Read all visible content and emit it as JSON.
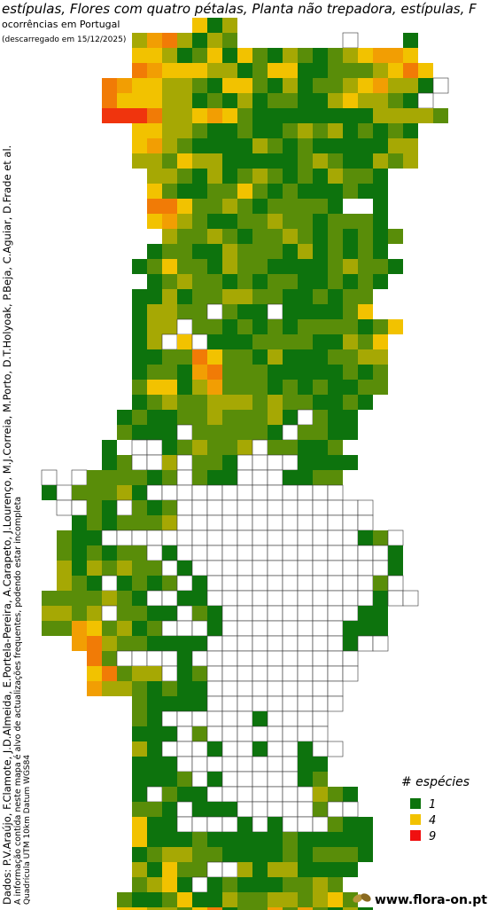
{
  "header": {
    "title": "estípulas, Flores com quatro pétalas, Planta não trepadora, estípulas, F",
    "subtitle": "ocorrências em Portugal",
    "date": "(descarregado em 15/12/2025)"
  },
  "credits": [
    "Dados: P.V.Araújo, F.Clamote, J.D.Almeida, E.Portela-Pereira, A.Carapeto, J.Lourenço, M.J.Correia, M.Porto, D.T.Holyoak, P.Beja, C.Aguiar, D.Frade et al.",
    "A informação contida neste mapa é alvo de actualizações frequentes, podendo estar incompleta",
    "Quadrícula UTM 10km Datum WGS84"
  ],
  "legend": {
    "title": "# espécies",
    "items": [
      {
        "value": 1,
        "color": "#0d730d"
      },
      {
        "value": 4,
        "color": "#f2c200"
      },
      {
        "value": 9,
        "color": "#f01010"
      }
    ]
  },
  "footer": "www.flora-on.pt",
  "map": {
    "rows": [
      "..........413",
      "......3563132.......0...1..",
      "......4431241421321234554..",
      "......65444331244112223464.",
      "....65443321442131223453310",
      "....6444331213122113433210.",
      "....88863345421111111133332",
      "......4433211211232312121..",
      "......4532111132121111133..",
      "......3324331111123211323..",
      ".......3321312321213221....",
      ".......4211224212111211....",
      ".......6642232122221..1....",
      ".......4532112232212221....",
      "........3223212232121212...",
      ".......1221132221312121....",
      "......124221322111123221...",
      ".......1232212122112121....",
      "......1131223322112122.....",
      "......1332202110111124.....",
      "......133022121212222124...",
      "......13040111222211324....",
      "......11226422131112233....",
      "......12215622211111212....",
      "......24413522212121122....",
      "......1232233323221121.....",
      ".....1211223222310211......",
      ".....2111022222102211......",
      "....1.00123223022112.......",
      "....12003022100001111......",
      "0.022221202110001122.......",
      "10222310000000000000.......",
      ".002102120000000000000.....",
      "..12122230000000000000.....",
      ".21100000000000000000120...",
      ".21212201000000000000001...",
      ".31323220100000000000001...",
      ".32101212010000000000020...",
      "2222321001100000000000100..",
      "33230221102100000000011....",
      "22542312000100000000111....",
      "..563221111000000000100....",
      "...620000100000000000......",
      "...462330120000000000......",
      "...53321211000000000.......",
      "......21111000000000.......",
      "......2100000010000........",
      "......1110200000000........",
      "......31000100100100.......",
      "......1110000000011........",
      "......1112010000012........",
      "......102110000000321......",
      "......221011100000200......",
      "......4110000101000211.....",
      "......4111211111211111.....",
      "......1233221111212221.....",
      "......314220031331111......",
      "......23410121112232.......",
      ".....2112411322332342......",
      ".....44332461225252131.....",
      ".....1.2.2311..214........."
    ]
  }
}
